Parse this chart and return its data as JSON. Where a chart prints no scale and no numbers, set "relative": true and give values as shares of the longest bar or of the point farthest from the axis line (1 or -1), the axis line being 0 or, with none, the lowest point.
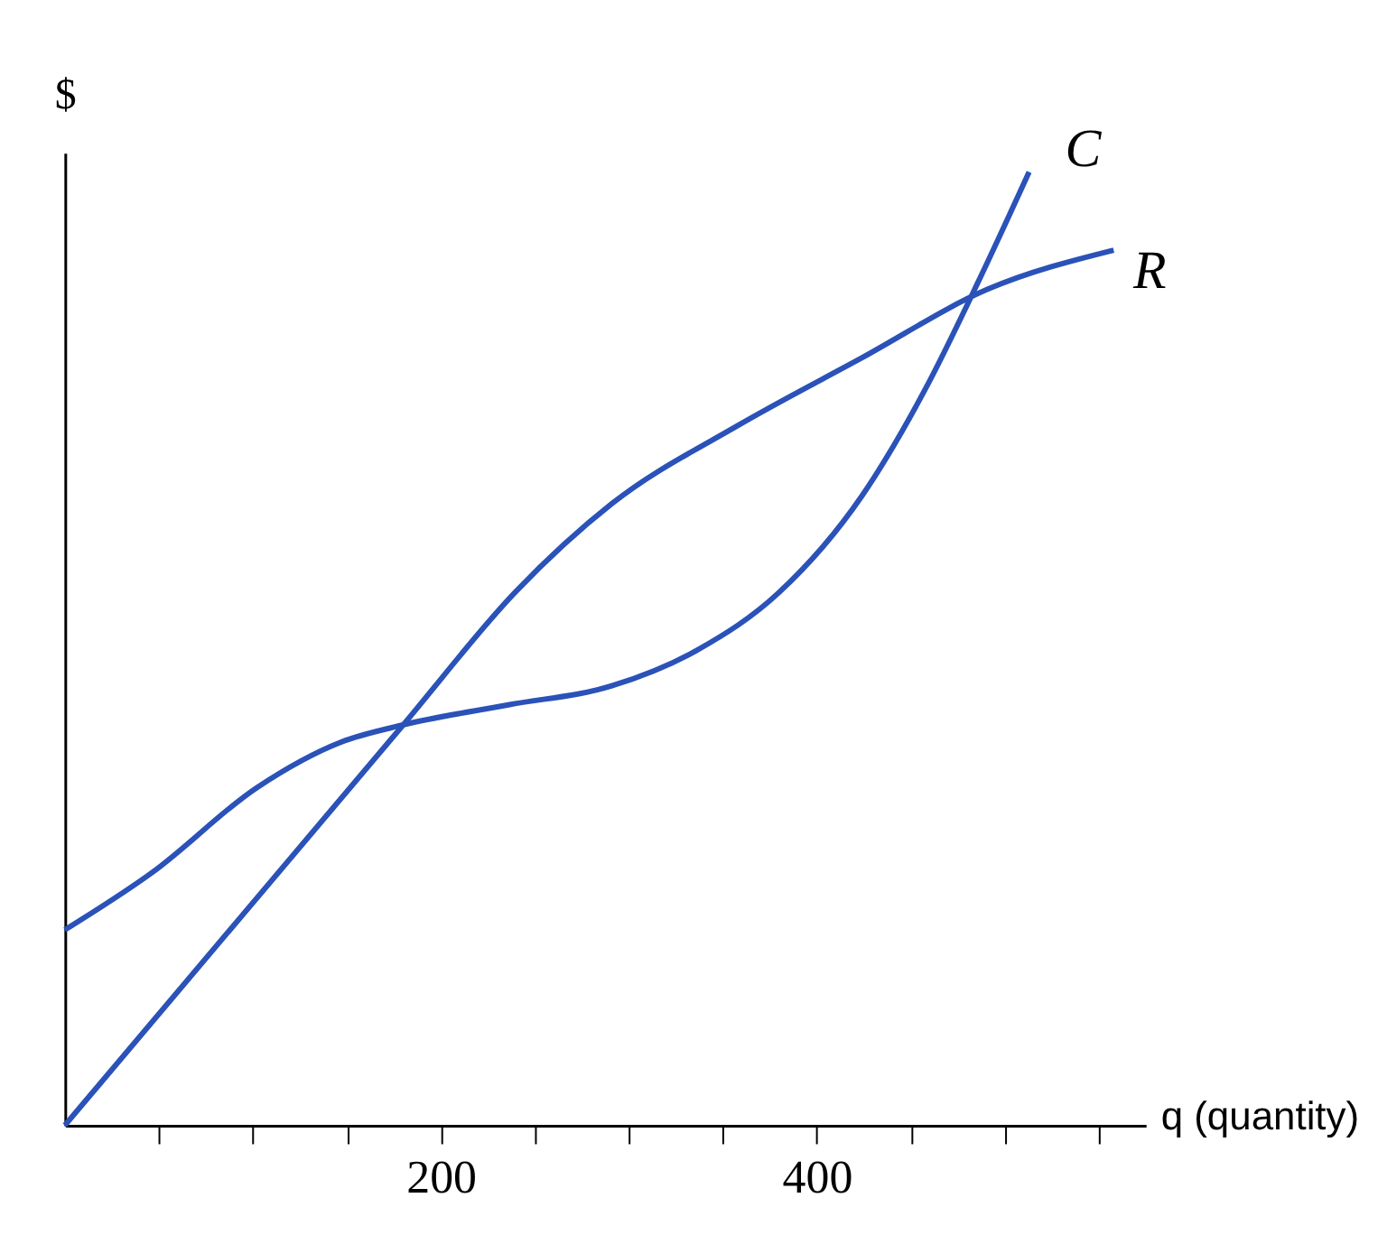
{
  "chart_data": {
    "type": "line",
    "relative": true,
    "ylabel": "$",
    "xlabel": "q (quantity)",
    "xlim": [
      0,
      575
    ],
    "xticks": [
      {
        "value": 50,
        "label": null
      },
      {
        "value": 100,
        "label": null
      },
      {
        "value": 150,
        "label": null
      },
      200,
      {
        "value": 250,
        "label": null
      },
      {
        "value": 300,
        "label": null
      },
      {
        "value": 350,
        "label": null
      },
      400,
      {
        "value": 450,
        "label": null
      },
      {
        "value": 500,
        "label": null
      },
      {
        "value": 550,
        "label": null
      }
    ],
    "grid": false,
    "marker": "none",
    "line_style": "solid",
    "series": [
      {
        "name": "C",
        "color": "#2a52b8",
        "x": [
          0,
          47,
          102,
          147,
          180,
          236,
          291,
          336,
          380,
          424,
          458,
          486,
          513
        ],
        "values": [
          0.205,
          0.266,
          0.354,
          0.402,
          0.42,
          0.441,
          0.461,
          0.498,
          0.559,
          0.66,
          0.773,
          0.885,
          1.0
        ]
      },
      {
        "name": "R",
        "color": "#2a52b8",
        "x": [
          0,
          180,
          240,
          291,
          358,
          424,
          491,
          558
        ],
        "values": [
          0,
          0.42,
          0.56,
          0.652,
          0.734,
          0.805,
          0.877,
          0.918
        ]
      }
    ]
  }
}
